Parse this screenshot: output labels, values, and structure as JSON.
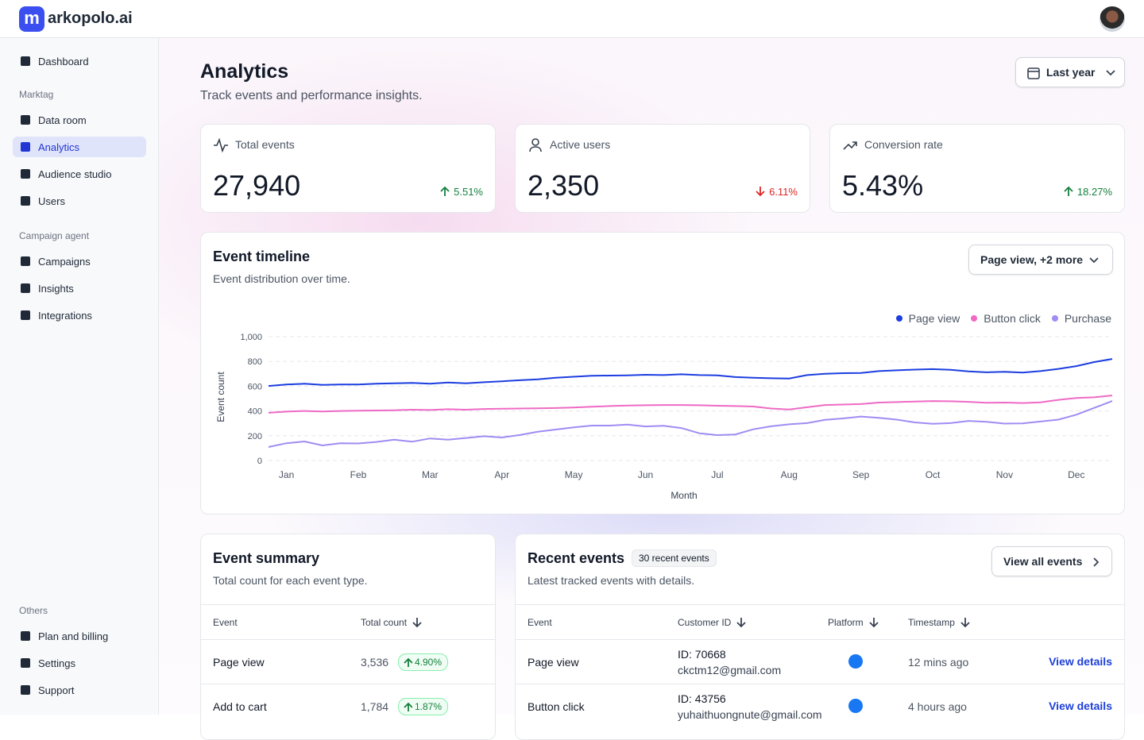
{
  "brand": "arkopolo.ai",
  "sidebar": {
    "top_items": [
      {
        "label": "Dashboard"
      }
    ],
    "sections": [
      {
        "title": "Marktag",
        "items": [
          {
            "label": "Data room"
          },
          {
            "label": "Analytics",
            "active": true
          },
          {
            "label": "Audience studio"
          },
          {
            "label": "Users"
          }
        ]
      },
      {
        "title": "Campaign agent",
        "items": [
          {
            "label": "Campaigns"
          },
          {
            "label": "Insights"
          },
          {
            "label": "Integrations"
          }
        ]
      },
      {
        "title": "Others",
        "items": [
          {
            "label": "Plan and billing"
          },
          {
            "label": "Settings"
          },
          {
            "label": "Support"
          }
        ]
      }
    ]
  },
  "header": {
    "title": "Analytics",
    "subtitle": "Track events and performance insights.",
    "date_filter": "Last year"
  },
  "kpis": [
    {
      "label": "Total events",
      "value": "27,940",
      "change": "5.51%",
      "trend": "up"
    },
    {
      "label": "Active users",
      "value": "2,350",
      "change": "6.11%",
      "trend": "down"
    },
    {
      "label": "Conversion rate",
      "value": "5.43%",
      "change": "18.27%",
      "trend": "up"
    }
  ],
  "timeline_filter": "Page view, +2 more",
  "chart_data": {
    "type": "line",
    "title": "Event timeline",
    "subtitle": "Event distribution over time.",
    "x_label": "Month",
    "y_label": "Event count",
    "legend": "top-right",
    "grid": true,
    "categories": [
      null,
      "Jan",
      null,
      null,
      null,
      "Feb",
      null,
      null,
      null,
      "Mar",
      null,
      null,
      null,
      "Apr",
      null,
      null,
      null,
      "May",
      null,
      null,
      null,
      "Jun",
      null,
      null,
      null,
      "Jul",
      null,
      null,
      null,
      "Aug",
      null,
      null,
      null,
      "Sep",
      null,
      null,
      null,
      "Oct",
      null,
      null,
      null,
      "Nov",
      null,
      null,
      null,
      "Dec",
      null,
      null
    ],
    "ylim": [
      0,
      1000
    ],
    "yticks": [
      0,
      200,
      400,
      600,
      800,
      {
        "value": 1000,
        "label": "1,000"
      }
    ],
    "series": [
      {
        "name": "Page view",
        "color": "#1c3ee0",
        "values": [
          602,
          614,
          620,
          611,
          614,
          614,
          620,
          623,
          626,
          620,
          630,
          624,
          632,
          640,
          648,
          656,
          668,
          676,
          684,
          686,
          688,
          692,
          690,
          696,
          690,
          688,
          674,
          668,
          664,
          662,
          690,
          700,
          705,
          707,
          722,
          728,
          734,
          738,
          732,
          720,
          712,
          716,
          710,
          722,
          740,
          762,
          795,
          820
        ]
      },
      {
        "name": "Button click",
        "color": "#ee6ac5",
        "values": [
          385,
          395,
          400,
          396,
          400,
          402,
          404,
          406,
          410,
          408,
          414,
          410,
          416,
          418,
          420,
          422,
          424,
          428,
          434,
          440,
          444,
          446,
          448,
          448,
          446,
          442,
          440,
          436,
          420,
          412,
          430,
          448,
          452,
          456,
          468,
          472,
          476,
          480,
          478,
          474,
          466,
          468,
          464,
          470,
          490,
          505,
          510,
          525
        ]
      },
      {
        "name": "Purchase",
        "color": "#a08cf2",
        "values": [
          109,
          140,
          154,
          122,
          140,
          138,
          150,
          168,
          152,
          178,
          168,
          182,
          196,
          186,
          206,
          232,
          250,
          268,
          282,
          282,
          290,
          275,
          280,
          262,
          220,
          205,
          210,
          252,
          276,
          292,
          302,
          328,
          340,
          355,
          345,
          330,
          308,
          296,
          302,
          320,
          312,
          298,
          300,
          315,
          330,
          370,
          425,
          480
        ]
      }
    ]
  },
  "event_summary": {
    "title": "Event summary",
    "subtitle": "Total count for each event type.",
    "columns": [
      "Event",
      "Total count"
    ],
    "rows": [
      {
        "event": "Page view",
        "count": "3,536",
        "change": "4.90%"
      },
      {
        "event": "Add to cart",
        "count": "1,784",
        "change": "1.87%"
      }
    ]
  },
  "recent_events": {
    "title": "Recent events",
    "badge": "30 recent events",
    "subtitle": "Latest tracked events with details.",
    "action": "View all events",
    "columns": [
      "Event",
      "Customer ID",
      "Platform",
      "Timestamp"
    ],
    "rows": [
      {
        "event": "Page view",
        "customer_id": "ID: 70668",
        "email": "ckctm12@gmail.com",
        "timestamp": "12 mins ago",
        "link": "View details"
      },
      {
        "event": "Button click",
        "customer_id": "ID: 43756",
        "email": "yuhaithuongnute@gmail.com",
        "timestamp": "4 hours ago",
        "link": "View details"
      }
    ]
  }
}
